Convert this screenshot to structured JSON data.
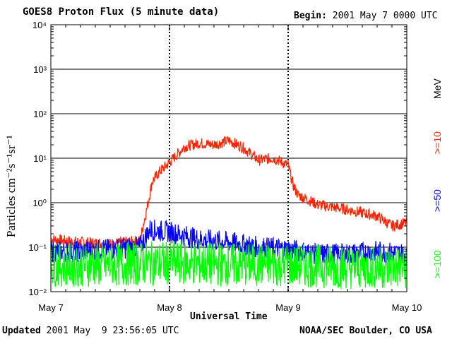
{
  "header": {
    "title": "GOES8 Proton Flux (5 minute data)",
    "begin_label": "Begin:",
    "begin_value": "2001 May 7 0000 UTC"
  },
  "footer": {
    "updated_label": "Updated",
    "updated_value": "2001 May  9 23:56:05 UTC",
    "credit": "NOAA/SEC Boulder, CO USA"
  },
  "colors": {
    "ge10": "#ff2200",
    "ge50": "#0000ff",
    "ge100": "#00ff00",
    "grid": "#000000"
  },
  "chart_data": {
    "type": "line",
    "title": "GOES8 Proton Flux (5 minute data)",
    "xlabel": "Universal Time",
    "ylabel": "Particles cm⁻²s⁻¹sr⁻¹",
    "y_scale": "log",
    "ylim": [
      0.01,
      10000
    ],
    "y_ticks": [
      "10⁻²",
      "10⁻¹",
      "10⁰",
      "10¹",
      "10²",
      "10³",
      "10⁴"
    ],
    "x_ticks": [
      "May 7",
      "May 8",
      "May 9",
      "May 10"
    ],
    "xlim": [
      "2001-05-07 00:00",
      "2001-05-10 00:00"
    ],
    "unit_label": "MeV",
    "grid": true,
    "series": [
      {
        "name": ">=10",
        "color": "#ff2200",
        "x": [
          "2001-05-07 00:00",
          "2001-05-07 06:00",
          "2001-05-07 12:00",
          "2001-05-07 18:00",
          "2001-05-07 19:30",
          "2001-05-07 20:30",
          "2001-05-07 22:00",
          "2001-05-08 00:00",
          "2001-05-08 03:00",
          "2001-05-08 06:00",
          "2001-05-08 09:00",
          "2001-05-08 12:00",
          "2001-05-08 15:00",
          "2001-05-08 18:00",
          "2001-05-08 21:00",
          "2001-05-09 00:00",
          "2001-05-09 01:00",
          "2001-05-09 02:00",
          "2001-05-09 06:00",
          "2001-05-09 12:00",
          "2001-05-09 18:00",
          "2001-05-09 21:00",
          "2001-05-09 23:55"
        ],
        "y": [
          0.15,
          0.13,
          0.12,
          0.14,
          0.8,
          3,
          5,
          8,
          18,
          22,
          20,
          25,
          17,
          9,
          10,
          7,
          2.5,
          1.5,
          0.9,
          0.7,
          0.5,
          0.3,
          0.35
        ]
      },
      {
        "name": ">=50",
        "color": "#0000ff",
        "x": [
          "2001-05-07 00:00",
          "2001-05-07 06:00",
          "2001-05-07 12:00",
          "2001-05-07 18:00",
          "2001-05-07 20:00",
          "2001-05-08 00:00",
          "2001-05-08 06:00",
          "2001-05-08 12:00",
          "2001-05-08 18:00",
          "2001-05-09 00:00",
          "2001-05-09 06:00",
          "2001-05-09 12:00",
          "2001-05-09 18:00",
          "2001-05-09 23:55"
        ],
        "y": [
          0.08,
          0.08,
          0.09,
          0.1,
          0.25,
          0.22,
          0.15,
          0.13,
          0.1,
          0.09,
          0.07,
          0.07,
          0.08,
          0.07
        ]
      },
      {
        "name": ">=100",
        "color": "#00ff00",
        "x": [
          "2001-05-07 00:00",
          "2001-05-07 12:00",
          "2001-05-08 00:00",
          "2001-05-08 12:00",
          "2001-05-09 00:00",
          "2001-05-09 12:00",
          "2001-05-09 23:55"
        ],
        "y": [
          0.04,
          0.04,
          0.045,
          0.04,
          0.04,
          0.035,
          0.035
        ]
      }
    ]
  }
}
